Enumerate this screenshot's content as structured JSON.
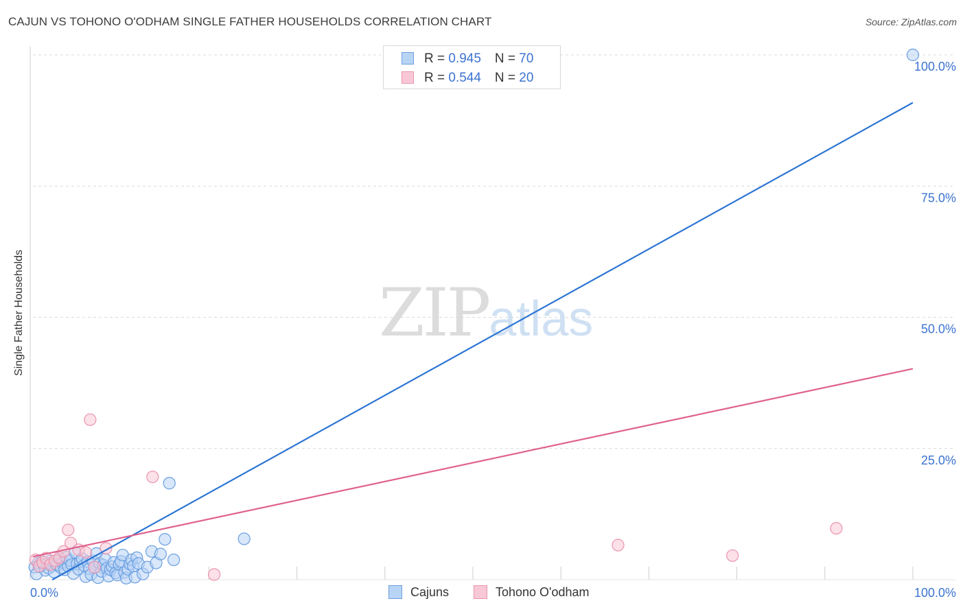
{
  "title": "CAJUN VS TOHONO O'ODHAM SINGLE FATHER HOUSEHOLDS CORRELATION CHART",
  "source": "Source: ZipAtlas.com",
  "watermark": {
    "zip": "ZIP",
    "atlas": "atlas"
  },
  "legend": {
    "rows": [
      {
        "r_label": "R = ",
        "r_value": "0.945",
        "n_label": "N = ",
        "n_value": "70"
      },
      {
        "r_label": "R = ",
        "r_value": "0.544",
        "n_label": "N = ",
        "n_value": "20"
      }
    ]
  },
  "bottom_legend": [
    "Cajuns",
    "Tohono O'odham"
  ],
  "colors": {
    "cajun_fill": "#b8d4f5",
    "cajun_stroke": "#6a9ee0",
    "cajun_line": "#2b74d4",
    "tohono_fill": "#f9c8d6",
    "tohono_stroke": "#ea94ae",
    "tohono_line": "#e0618b",
    "grid": "#d9d9d9",
    "axis_label": "#3b73d1"
  },
  "chart_data": {
    "type": "scatter",
    "title": "CAJUN VS TOHONO O'ODHAM SINGLE FATHER HOUSEHOLDS CORRELATION CHART",
    "xlabel": "",
    "ylabel": "Single Father Households",
    "xlim": [
      0,
      100
    ],
    "ylim": [
      0,
      100
    ],
    "x_tick_labels": [
      "0.0%",
      "100.0%"
    ],
    "y_ticks": [
      25,
      50,
      75,
      100
    ],
    "y_tick_labels": [
      "25.0%",
      "50.0%",
      "75.0%",
      "100.0%"
    ],
    "grid": true,
    "series": [
      {
        "name": "Cajuns",
        "r": 0.945,
        "n": 70,
        "trend": {
          "x": [
            2.2,
            100
          ],
          "y": [
            0,
            90.9
          ]
        },
        "points": [
          [
            0.2,
            2.4
          ],
          [
            0.4,
            1.1
          ],
          [
            0.6,
            3.2
          ],
          [
            0.8,
            2.5
          ],
          [
            1.0,
            3.5
          ],
          [
            1.2,
            2.9
          ],
          [
            1.4,
            1.8
          ],
          [
            1.6,
            3.1
          ],
          [
            1.8,
            2.2
          ],
          [
            2.0,
            3.6
          ],
          [
            2.2,
            2.6
          ],
          [
            2.4,
            1.5
          ],
          [
            2.6,
            3.0
          ],
          [
            2.8,
            2.8
          ],
          [
            3.0,
            3.9
          ],
          [
            3.2,
            2.3
          ],
          [
            3.4,
            3.3
          ],
          [
            3.6,
            1.9
          ],
          [
            3.8,
            4.3
          ],
          [
            4.0,
            2.6
          ],
          [
            4.2,
            3.7
          ],
          [
            4.4,
            2.9
          ],
          [
            4.6,
            1.2
          ],
          [
            4.8,
            5.2
          ],
          [
            5.0,
            3.0
          ],
          [
            5.2,
            2.0
          ],
          [
            5.4,
            3.5
          ],
          [
            5.6,
            4.0
          ],
          [
            5.8,
            2.7
          ],
          [
            6.0,
            0.6
          ],
          [
            6.2,
            3.4
          ],
          [
            6.4,
            2.1
          ],
          [
            6.6,
            1.0
          ],
          [
            6.8,
            3.6
          ],
          [
            7.0,
            2.4
          ],
          [
            7.2,
            5.0
          ],
          [
            7.4,
            0.4
          ],
          [
            7.6,
            3.1
          ],
          [
            7.8,
            1.6
          ],
          [
            8.0,
            2.8
          ],
          [
            8.2,
            3.9
          ],
          [
            8.4,
            2.2
          ],
          [
            8.6,
            0.7
          ],
          [
            8.8,
            1.9
          ],
          [
            9.0,
            2.5
          ],
          [
            9.2,
            3.3
          ],
          [
            9.4,
            1.3
          ],
          [
            9.6,
            0.9
          ],
          [
            9.8,
            2.9
          ],
          [
            10.0,
            3.5
          ],
          [
            10.2,
            4.7
          ],
          [
            10.4,
            1.4
          ],
          [
            10.6,
            0.3
          ],
          [
            10.8,
            2.0
          ],
          [
            11.0,
            3.0
          ],
          [
            11.2,
            3.8
          ],
          [
            11.4,
            2.6
          ],
          [
            11.6,
            0.5
          ],
          [
            11.8,
            4.2
          ],
          [
            12.0,
            3.1
          ],
          [
            12.5,
            1.1
          ],
          [
            13.0,
            2.4
          ],
          [
            13.5,
            5.4
          ],
          [
            14.0,
            3.2
          ],
          [
            14.5,
            4.9
          ],
          [
            15.0,
            7.7
          ],
          [
            15.5,
            18.4
          ],
          [
            16.0,
            3.8
          ],
          [
            24.0,
            7.8
          ],
          [
            100.0,
            100.0
          ]
        ]
      },
      {
        "name": "Tohono O'odham",
        "r": 0.544,
        "n": 20,
        "trend": {
          "x": [
            0,
            100
          ],
          "y": [
            4.4,
            40.2
          ]
        },
        "points": [
          [
            0.3,
            3.8
          ],
          [
            0.7,
            2.6
          ],
          [
            1.1,
            3.3
          ],
          [
            1.5,
            4.1
          ],
          [
            2.0,
            2.9
          ],
          [
            2.5,
            3.6
          ],
          [
            3.0,
            4.2
          ],
          [
            3.5,
            5.4
          ],
          [
            4.0,
            9.5
          ],
          [
            4.3,
            7.0
          ],
          [
            5.2,
            5.7
          ],
          [
            6.0,
            5.2
          ],
          [
            6.5,
            30.5
          ],
          [
            7.0,
            2.4
          ],
          [
            8.3,
            6.0
          ],
          [
            13.6,
            19.6
          ],
          [
            20.6,
            1.0
          ],
          [
            66.5,
            6.6
          ],
          [
            79.5,
            4.6
          ],
          [
            91.3,
            9.8
          ]
        ]
      }
    ]
  }
}
